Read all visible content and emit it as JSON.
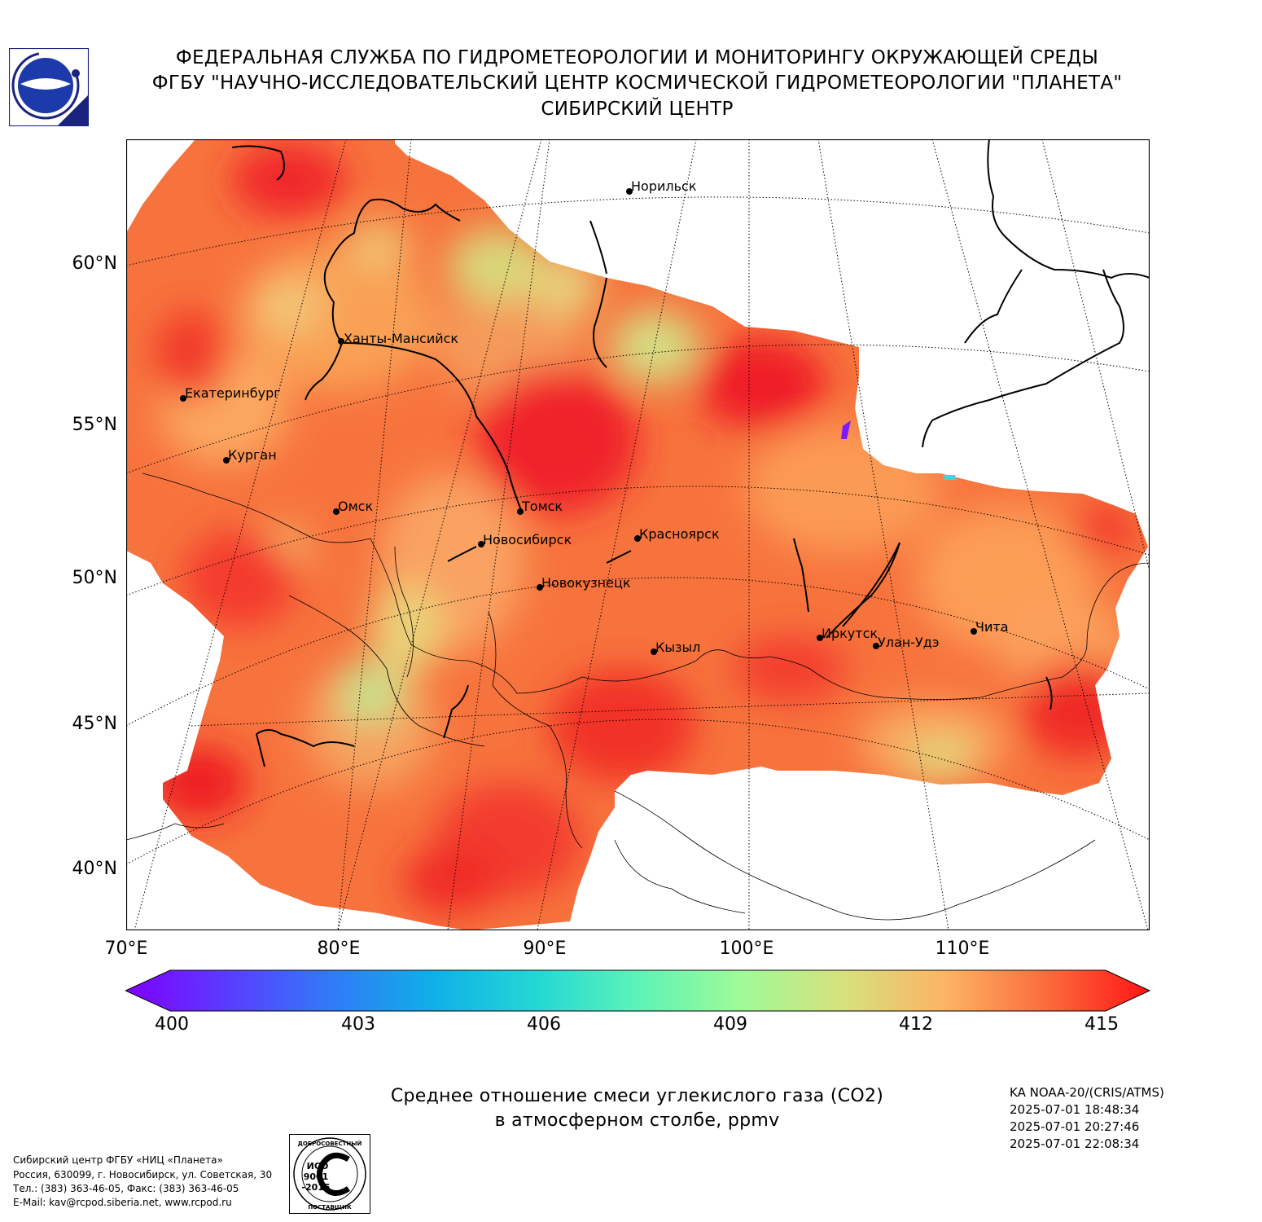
{
  "header": {
    "line1": "ФЕДЕРАЛЬНАЯ СЛУЖБА ПО ГИДРОМЕТЕОРОЛОГИИ И МОНИТОРИНГУ ОКРУЖАЮЩЕЙ СРЕДЫ",
    "line2": "ФГБУ \"НАУЧНО-ИССЛЕДОВАТЕЛЬСКИЙ ЦЕНТР КОСМИЧЕСКОЙ ГИДРОМЕТЕОРОЛОГИИ \"ПЛАНЕТА\"",
    "line3": "СИБИРСКИЙ ЦЕНТР"
  },
  "map": {
    "lat_labels": [
      "60°N",
      "55°N",
      "50°N",
      "45°N",
      "40°N"
    ],
    "lon_labels": [
      "70°E",
      "80°E",
      "90°E",
      "100°E",
      "110°E"
    ],
    "cities": [
      {
        "name": "Норильск"
      },
      {
        "name": "Ханты-Мансийск"
      },
      {
        "name": "Екатеринбург"
      },
      {
        "name": "Курган"
      },
      {
        "name": "Омск"
      },
      {
        "name": "Томск"
      },
      {
        "name": "Новосибирск"
      },
      {
        "name": "Красноярск"
      },
      {
        "name": "Новокузнецк"
      },
      {
        "name": "Иркутск"
      },
      {
        "name": "Улан-Удэ"
      },
      {
        "name": "Чита"
      },
      {
        "name": "Кызыл"
      }
    ],
    "colors": {
      "low": "#7f00ff",
      "high": "#ff0000",
      "mid": "#9ff59a",
      "typical": "#f7703a"
    }
  },
  "colorbar": {
    "min": 400,
    "max": 415,
    "ticks": [
      "400",
      "403",
      "406",
      "409",
      "412",
      "415"
    ]
  },
  "caption": {
    "line1": "Среднее отношение смеси углекислого газа (CO2)",
    "line2": "в атмосферном столбе, ppmv"
  },
  "meta": {
    "satellite": "KA NOAA-20/(CRIS/ATMS)",
    "passes": [
      "2025-07-01 18:48:34",
      "2025-07-01 20:27:46",
      "2025-07-01 22:08:34"
    ]
  },
  "contacts": {
    "line1": "Сибирский центр ФГБУ «НИЦ «Планета»",
    "line2": "Россия, 630099, г. Новосибирск, ул. Советская, 30",
    "line3": "Тел.: (383) 363-46-05, Факс: (383) 363-46-05",
    "line4": "E-Mail: kav@rcpod.siberia.net, www.rcpod.ru"
  },
  "iso_stamp": {
    "top": "ДОБРОСОВЕСТНЫЙ",
    "iso": "ИСО",
    "num": "9001",
    "year": "-2015",
    "bottom": "ПОСТАВЩИК"
  }
}
